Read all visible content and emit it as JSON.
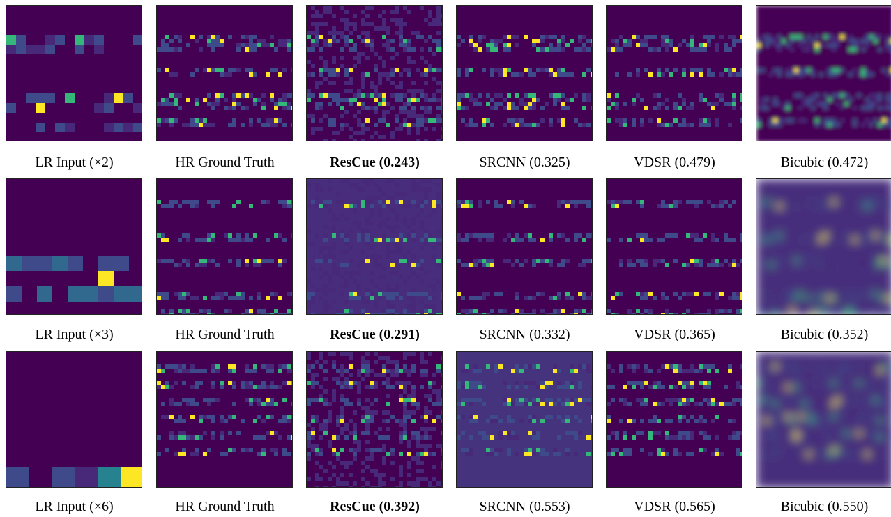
{
  "rows": [
    {
      "panels": [
        {
          "caption": "LR Input (×2)",
          "highlight": false
        },
        {
          "caption": "HR Ground Truth",
          "highlight": false
        },
        {
          "caption": "ResCue (0.243)",
          "highlight": true
        },
        {
          "caption": "SRCNN (0.325)",
          "highlight": false
        },
        {
          "caption": "VDSR (0.479)",
          "highlight": false
        },
        {
          "caption": "Bicubic (0.472)",
          "highlight": false
        }
      ]
    },
    {
      "panels": [
        {
          "caption": "LR Input (×3)",
          "highlight": false
        },
        {
          "caption": "HR Ground Truth",
          "highlight": false
        },
        {
          "caption": "ResCue (0.291)",
          "highlight": true
        },
        {
          "caption": "SRCNN (0.332)",
          "highlight": false
        },
        {
          "caption": "VDSR (0.365)",
          "highlight": false
        },
        {
          "caption": "Bicubic (0.352)",
          "highlight": false
        }
      ]
    },
    {
      "panels": [
        {
          "caption": "LR Input (×6)",
          "highlight": false
        },
        {
          "caption": "HR Ground Truth",
          "highlight": false
        },
        {
          "caption": "ResCue (0.392)",
          "highlight": true
        },
        {
          "caption": "SRCNN (0.553)",
          "highlight": false
        },
        {
          "caption": "VDSR (0.565)",
          "highlight": false
        },
        {
          "caption": "Bicubic (0.550)",
          "highlight": false
        }
      ]
    }
  ]
}
